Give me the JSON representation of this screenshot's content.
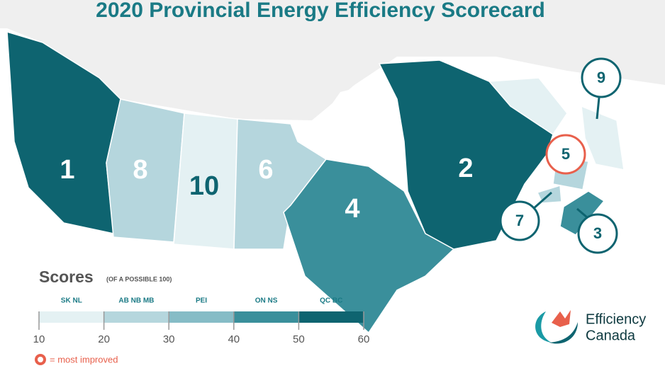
{
  "title": "2020 Provincial Energy Efficiency Scorecard",
  "map": {
    "ranks": [
      1,
      8,
      10,
      6,
      4,
      2,
      9,
      5,
      7,
      3
    ]
  },
  "legend": {
    "title": "Scores",
    "subtitle": "(OF A POSSIBLE 100)",
    "bins": [
      "SK NL",
      "AB NB MB",
      "PEI",
      "ON NS",
      "QC BC"
    ],
    "ticks": [
      10,
      20,
      30,
      40,
      50,
      60
    ],
    "note": "= most improved"
  },
  "logo": {
    "line1": "Efficiency",
    "line2": "Canada"
  }
}
